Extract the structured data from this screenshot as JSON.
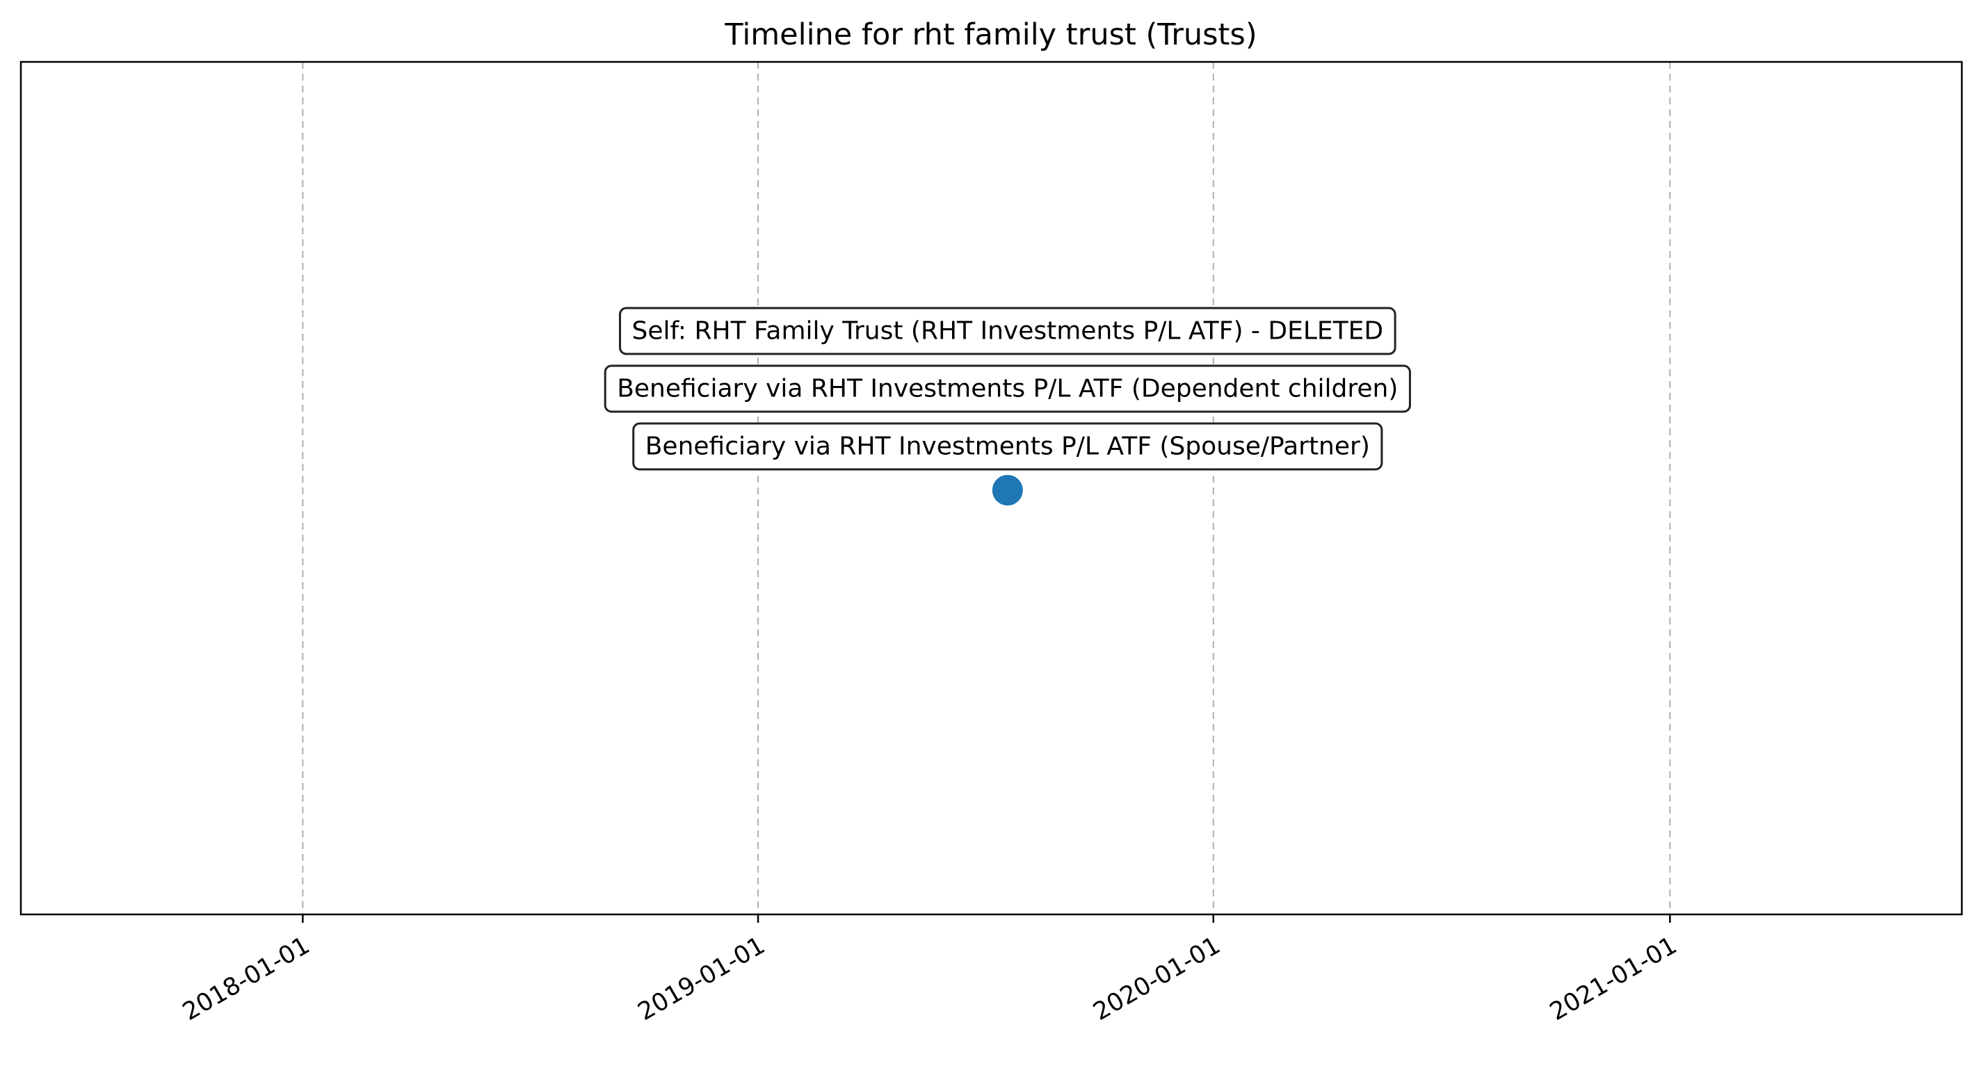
{
  "chart_data": {
    "type": "scatter",
    "title": "Timeline for rht family trust (Trusts)",
    "xlabel": "",
    "ylabel": "",
    "x_axis_type": "date",
    "xlim": [
      "2017-05-20",
      "2021-08-23"
    ],
    "x_ticks": [
      "2018-01-01",
      "2019-01-01",
      "2020-01-01",
      "2021-01-01"
    ],
    "x_tick_rotation_deg": 30,
    "y_axis_visible": false,
    "grid": "vertical dashed",
    "point_color": "#1f77b4",
    "points": [
      {
        "x": "2019-07-20",
        "labels": [
          "Beneficiary via RHT Investments P/L ATF (Spouse/Partner)",
          "Beneficiary via RHT Investments P/L ATF (Dependent children)",
          "Self: RHT Family Trust (RHT Investments P/L ATF) - DELETED"
        ]
      }
    ]
  }
}
